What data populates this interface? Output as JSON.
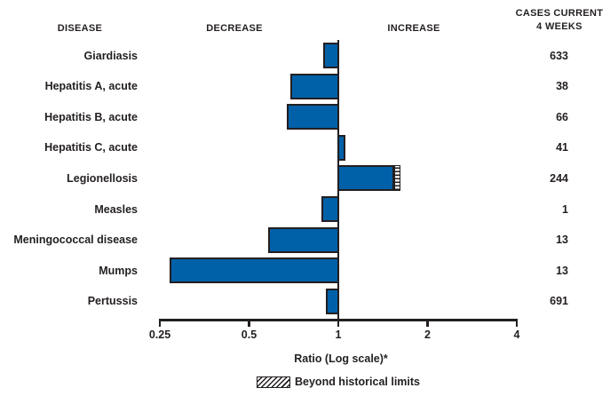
{
  "header": {
    "disease": "DISEASE",
    "decrease": "DECREASE",
    "increase": "INCREASE",
    "cases_line1": "CASES CURRENT",
    "cases_line2": "4 WEEKS"
  },
  "chart_data": {
    "type": "bar",
    "orientation": "horizontal",
    "scale": "log2",
    "baseline": 1,
    "axis": {
      "label": "Ratio (Log scale)*",
      "range": [
        0.25,
        4
      ],
      "ticks": [
        {
          "label": "0.25",
          "value": 0.25
        },
        {
          "label": "0.5",
          "value": 0.5
        },
        {
          "label": "1",
          "value": 1
        },
        {
          "label": "2",
          "value": 2
        },
        {
          "label": "4",
          "value": 4
        }
      ]
    },
    "rows": [
      {
        "disease": "Giardiasis",
        "ratio": 0.89,
        "cases": "633",
        "beyond_historical_limits": false
      },
      {
        "disease": "Hepatitis A, acute",
        "ratio": 0.69,
        "cases": "38",
        "beyond_historical_limits": false
      },
      {
        "disease": "Hepatitis B, acute",
        "ratio": 0.67,
        "cases": "66",
        "beyond_historical_limits": false
      },
      {
        "disease": "Hepatitis C, acute",
        "ratio": 1.06,
        "cases": "41",
        "beyond_historical_limits": false
      },
      {
        "disease": "Legionellosis",
        "ratio": 1.61,
        "cases": "244",
        "beyond_historical_limits": true
      },
      {
        "disease": "Measles",
        "ratio": 0.88,
        "cases": "1",
        "beyond_historical_limits": false
      },
      {
        "disease": "Meningococcal disease",
        "ratio": 0.58,
        "cases": "13",
        "beyond_historical_limits": false
      },
      {
        "disease": "Mumps",
        "ratio": 0.27,
        "cases": "13",
        "beyond_historical_limits": false
      },
      {
        "disease": "Pertussis",
        "ratio": 0.91,
        "cases": "691",
        "beyond_historical_limits": false
      }
    ],
    "legend": {
      "label": "Beyond historical limits",
      "swatch": "diagonal-hatch"
    }
  },
  "colors": {
    "bar_fill": "#0060a8",
    "outline": "#231f20",
    "text": "#231f20",
    "background": "#ffffff"
  }
}
